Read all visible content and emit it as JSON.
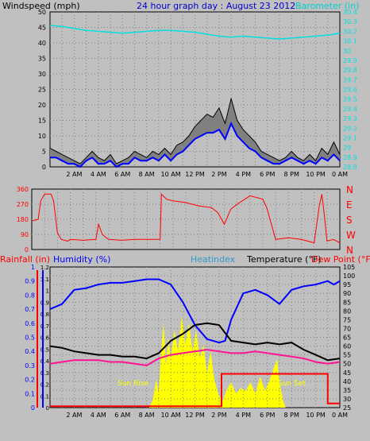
{
  "header": {
    "wind_label": "Windspeed (mph)",
    "title": "24 hour graph day : August 23 2012",
    "baro_label": "Barometer (in)"
  },
  "colors": {
    "wind": "#000000",
    "gust": "#000000",
    "avg_wind": "#0000ff",
    "barometer": "#00e0e0",
    "direction": "#ff0000",
    "humidity": "#0000ff",
    "temperature": "#000000",
    "dewpoint": "#ff1493",
    "rainfall": "#ff0000",
    "solar": "#ffff00",
    "heatindex": "#3399cc",
    "grid": "#808080"
  },
  "time_labels": [
    "2 AM",
    "4 AM",
    "6 AM",
    "8 AM",
    "10 AM",
    "12 PM",
    "2 PM",
    "4 PM",
    "6 PM",
    "8 PM",
    "10 PM",
    "0 AM"
  ],
  "chart_data": [
    {
      "type": "line",
      "title": "24 hour graph day : August 23 2012",
      "ylabel": "Windspeed (mph)",
      "y2label": "Barometer (in)",
      "ylim": [
        0,
        50
      ],
      "y2lim": [
        28.8,
        30.4
      ],
      "yticks": [
        0,
        5,
        10,
        15,
        20,
        25,
        30,
        35,
        40,
        45,
        50
      ],
      "y2ticks": [
        "28.8",
        "28.9",
        "29",
        "29.1",
        "29.2",
        "29.3",
        "29.4",
        "29.5",
        "29.6",
        "29.7",
        "29.8",
        "29.9",
        "30",
        "30.1",
        "30.2",
        "30.3",
        "30.4"
      ],
      "xlim": [
        0,
        24
      ],
      "series": [
        {
          "key": "wind",
          "x": [
            0,
            0.5,
            1,
            1.5,
            2,
            2.5,
            3,
            3.5,
            4,
            4.5,
            5,
            5.5,
            6,
            6.5,
            7,
            7.5,
            8,
            8.5,
            9,
            9.5,
            10,
            10.5,
            11,
            11.5,
            12,
            12.5,
            13,
            13.5,
            14,
            14.5,
            15,
            15.5,
            16,
            16.5,
            17,
            17.5,
            18,
            18.5,
            19,
            19.5,
            20,
            20.5,
            21,
            21.5,
            22,
            22.5,
            23,
            23.5,
            24
          ],
          "y": [
            6,
            5,
            4,
            3,
            2,
            1,
            3,
            5,
            3,
            2,
            4,
            1,
            2,
            3,
            5,
            4,
            3,
            5,
            4,
            6,
            4,
            7,
            8,
            10,
            13,
            15,
            17,
            16,
            19,
            14,
            22,
            15,
            12,
            10,
            8,
            5,
            4,
            3,
            2,
            3,
            5,
            3,
            2,
            4,
            2,
            6,
            4,
            8,
            4
          ]
        },
        {
          "key": "avg_wind",
          "x": [
            0,
            0.5,
            1,
            1.5,
            2,
            2.5,
            3,
            3.5,
            4,
            4.5,
            5,
            5.5,
            6,
            6.5,
            7,
            7.5,
            8,
            8.5,
            9,
            9.5,
            10,
            10.5,
            11,
            11.5,
            12,
            12.5,
            13,
            13.5,
            14,
            14.5,
            15,
            15.5,
            16,
            16.5,
            17,
            17.5,
            18,
            18.5,
            19,
            19.5,
            20,
            20.5,
            21,
            21.5,
            22,
            22.5,
            23,
            23.5,
            24
          ],
          "y": [
            3,
            3,
            2,
            1,
            1,
            0,
            2,
            3,
            1,
            1,
            2,
            0,
            1,
            1,
            3,
            2,
            2,
            3,
            2,
            4,
            2,
            4,
            5,
            7,
            9,
            10,
            11,
            11,
            12,
            9,
            14,
            10,
            8,
            6,
            5,
            3,
            2,
            1,
            1,
            2,
            3,
            2,
            1,
            2,
            1,
            3,
            2,
            4,
            2
          ]
        },
        {
          "key": "barometer",
          "x": [
            0,
            1,
            2,
            3,
            4,
            5,
            6,
            7,
            8,
            9,
            10,
            11,
            12,
            13,
            14,
            15,
            16,
            17,
            18,
            19,
            20,
            21,
            22,
            23,
            24
          ],
          "y": [
            30.26,
            30.25,
            30.23,
            30.21,
            30.2,
            30.19,
            30.18,
            30.19,
            30.2,
            30.21,
            30.21,
            30.2,
            30.19,
            30.17,
            30.15,
            30.14,
            30.15,
            30.14,
            30.13,
            30.12,
            30.13,
            30.14,
            30.15,
            30.16,
            30.18
          ]
        }
      ]
    },
    {
      "type": "line",
      "ylabel": "",
      "ylim": [
        0,
        360
      ],
      "yticks": [
        0,
        90,
        180,
        270,
        360
      ],
      "compass": [
        "N",
        "W",
        "S",
        "E",
        "N"
      ],
      "xlim": [
        0,
        24
      ],
      "series": [
        {
          "key": "direction",
          "x": [
            0,
            0.5,
            0.7,
            1,
            1.5,
            1.7,
            2,
            2.3,
            2.8,
            3,
            4,
            5,
            5.2,
            5.5,
            5.8,
            6,
            7,
            8,
            9,
            10,
            10.1,
            10.5,
            11,
            12,
            13,
            14,
            14.5,
            15,
            15.5,
            16,
            17,
            18,
            18.3,
            19,
            20,
            21,
            22,
            22.4,
            22.6,
            22.8,
            23,
            23.5,
            24
          ],
          "y": [
            170,
            180,
            290,
            330,
            330,
            290,
            100,
            60,
            50,
            60,
            55,
            60,
            150,
            90,
            70,
            60,
            55,
            60,
            60,
            60,
            330,
            300,
            290,
            280,
            260,
            250,
            220,
            150,
            240,
            270,
            320,
            300,
            250,
            60,
            70,
            60,
            40,
            260,
            330,
            200,
            50,
            60,
            40
          ]
        }
      ]
    },
    {
      "type": "line",
      "ylabel": "Rainfall (in)",
      "ylim": [
        0,
        1.0
      ],
      "yticks": [
        "0",
        "0.1",
        "0.2",
        "0.3",
        "0.4",
        "0.5",
        "0.6",
        "0.7",
        "0.8",
        "0.9",
        "1"
      ],
      "y2label": "Humidity (%)",
      "y2ticks": [
        "0",
        "0.1",
        "0.2",
        "0.3",
        "0.4",
        "0.5",
        "0.6",
        "0.7",
        "0.8",
        "0.9",
        "1",
        "1.1",
        "1.2"
      ],
      "y3label": "Temperature (°F)",
      "y3lim": [
        25,
        105
      ],
      "y3ticks": [
        25,
        30,
        35,
        40,
        45,
        50,
        55,
        60,
        65,
        70,
        75,
        80,
        85,
        90,
        95,
        100,
        105
      ],
      "heatindex_label": "Heatindex",
      "dewpoint_label": "Dew Point (°F)",
      "annotations": [
        "Sun Rise",
        "Sun Set"
      ],
      "xlim": [
        0,
        24
      ],
      "series": [
        {
          "key": "humidity_temp",
          "x": [
            0,
            1,
            2,
            3,
            4,
            5,
            6,
            7,
            8,
            9,
            10,
            11,
            12,
            13,
            14,
            14.5,
            15,
            16,
            17,
            18,
            19,
            20,
            21,
            22,
            23,
            23.5,
            24
          ],
          "y": [
            81,
            84,
            92,
            93,
            95,
            96,
            96,
            97,
            98,
            98,
            95,
            85,
            72,
            64,
            62,
            63,
            75,
            90,
            92,
            89,
            84,
            92,
            94,
            95,
            97,
            95,
            97
          ]
        },
        {
          "key": "temperature",
          "x": [
            0,
            1,
            2,
            3,
            4,
            5,
            6,
            7,
            8,
            9,
            10,
            11,
            12,
            13,
            14,
            15,
            16,
            17,
            18,
            19,
            20,
            21,
            22,
            23,
            24
          ],
          "y": [
            60,
            59,
            57,
            56,
            55,
            55,
            54,
            54,
            53,
            56,
            63,
            67,
            72,
            73,
            72,
            63,
            62,
            61,
            62,
            61,
            62,
            58,
            55,
            52,
            53
          ]
        },
        {
          "key": "dewpoint",
          "x": [
            0,
            1,
            2,
            3,
            4,
            5,
            6,
            7,
            8,
            9,
            10,
            11,
            12,
            13,
            14,
            15,
            16,
            17,
            18,
            19,
            20,
            21,
            22,
            23,
            24
          ],
          "y": [
            50,
            51,
            52,
            52,
            52,
            51,
            51,
            50,
            49,
            53,
            55,
            56,
            57,
            58,
            57,
            56,
            56,
            57,
            56,
            55,
            54,
            53,
            51,
            50,
            51
          ]
        },
        {
          "key": "rainfall",
          "x": [
            0,
            14.2,
            14.2,
            23,
            23,
            24
          ],
          "y": [
            0.01,
            0.01,
            0.24,
            0.24,
            0.03,
            0.03
          ]
        }
      ]
    }
  ]
}
